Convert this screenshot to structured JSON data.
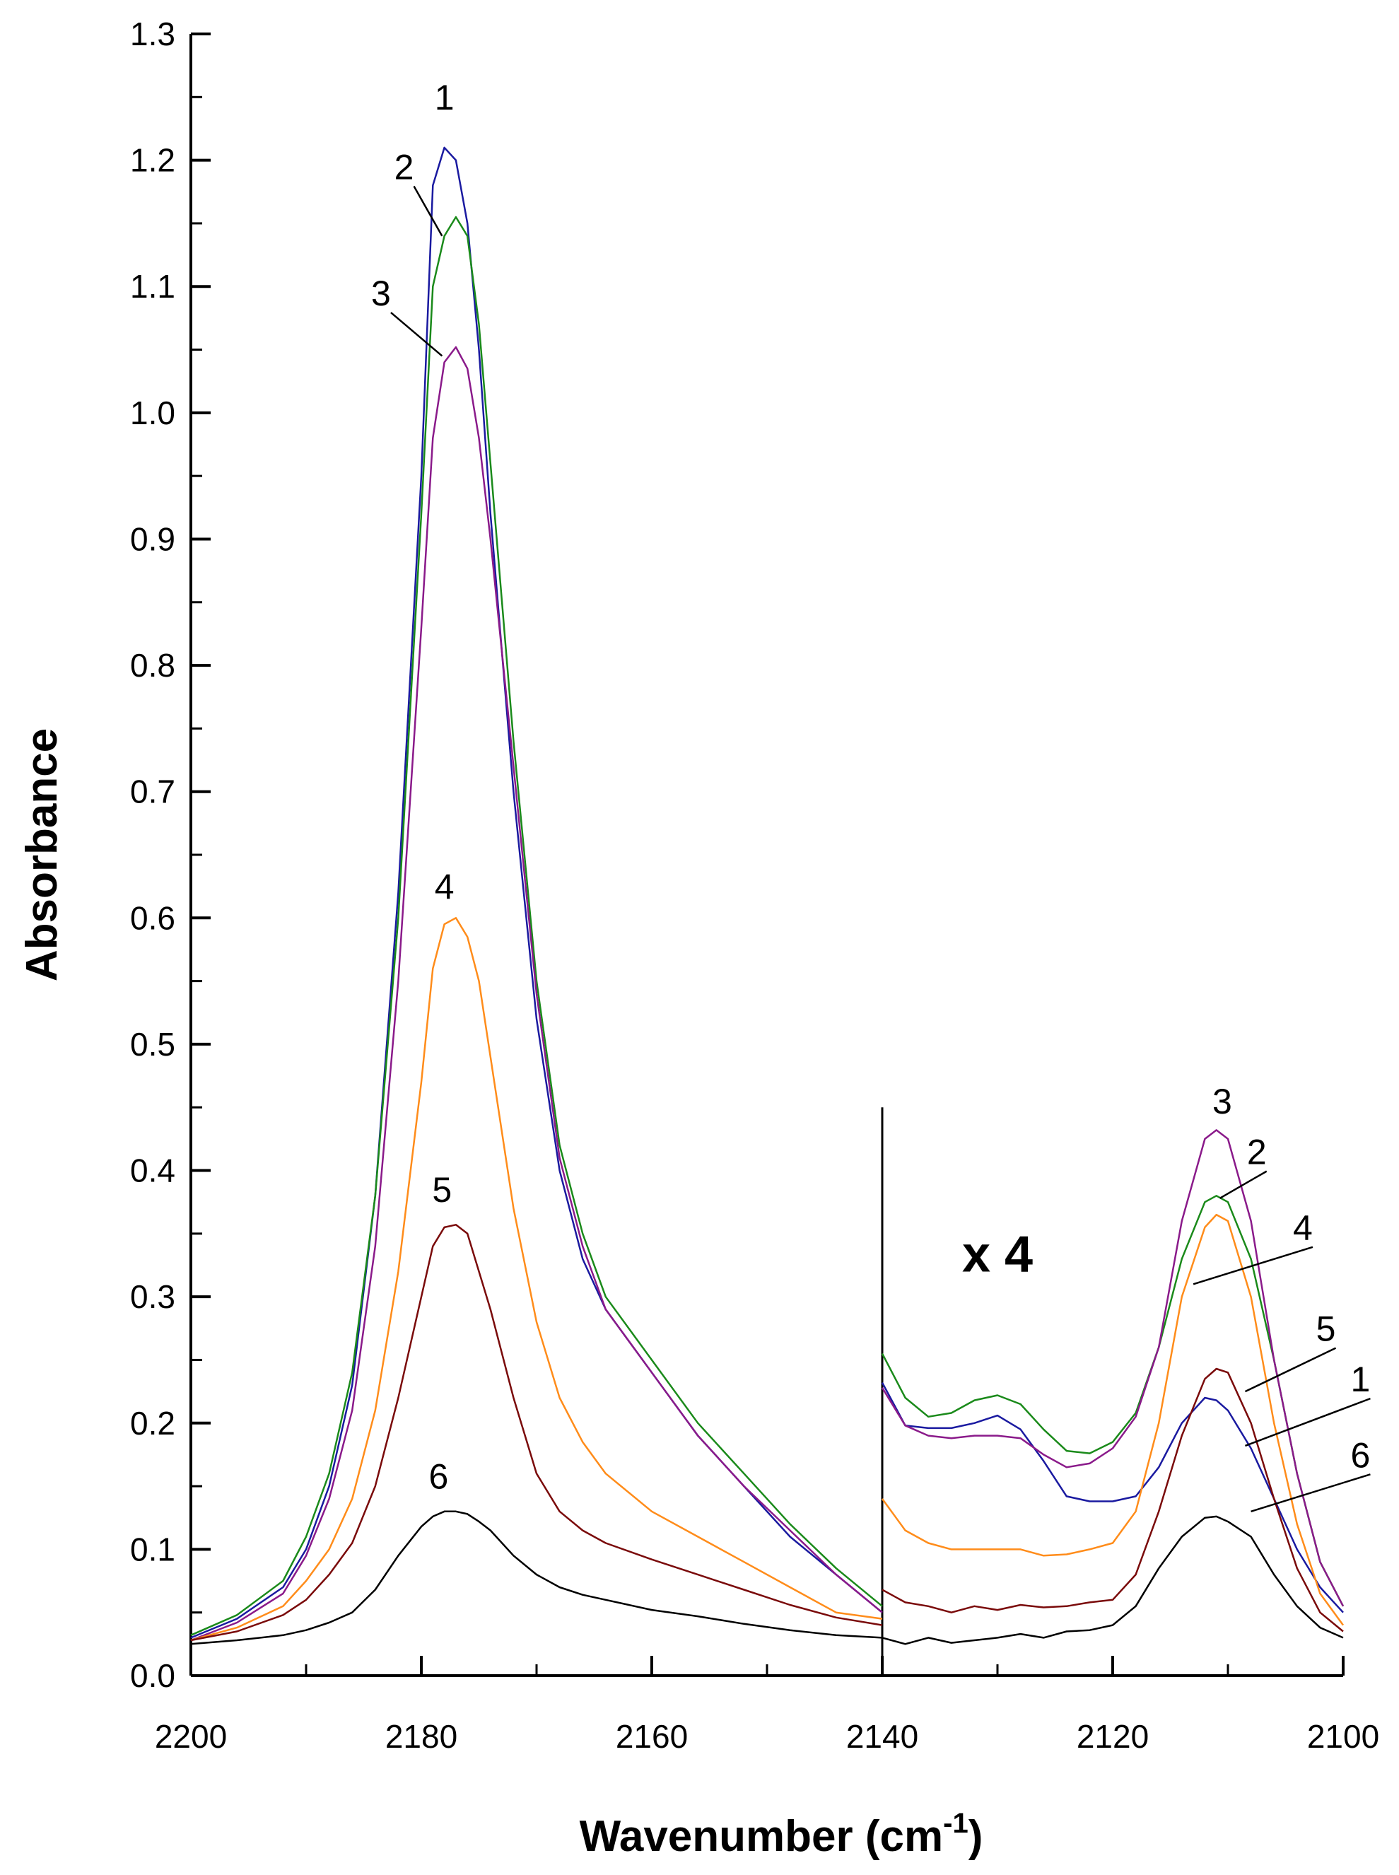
{
  "chart_data": {
    "type": "line",
    "title": "",
    "xlabel": "Wavenumber (cm",
    "xlabel_superscript": "-1",
    "xlabel_close": ")",
    "ylabel": "Absorbance",
    "xlim": [
      2200,
      2100
    ],
    "ylim": [
      0.0,
      1.3
    ],
    "x_direction": "reversed",
    "xticks": [
      "2200",
      "2180",
      "2160",
      "2140",
      "2120",
      "2100"
    ],
    "yticks": [
      "0.0",
      "0.1",
      "0.2",
      "0.3",
      "0.4",
      "0.5",
      "0.6",
      "0.7",
      "0.8",
      "0.9",
      "1.0",
      "1.1",
      "1.2",
      "1.3"
    ],
    "grid": false,
    "break_at": 2140,
    "magnified_region_factor": 4,
    "annotation": "x 4",
    "colors": {
      "1": "#1a1aa0",
      "2": "#1a8a1a",
      "3": "#8a1a8a",
      "4": "#ff8c1a",
      "5": "#7a0a0a",
      "6": "#000000"
    },
    "series": [
      {
        "name": "1",
        "color": "#1a1aa0",
        "x": [
          2200,
          2196,
          2192,
          2190,
          2188,
          2186,
          2184,
          2182,
          2180,
          2179,
          2178,
          2177,
          2176,
          2175,
          2174,
          2172,
          2170,
          2168,
          2166,
          2164,
          2160,
          2156,
          2152,
          2148,
          2144,
          2140
        ],
        "y": [
          0.03,
          0.045,
          0.07,
          0.1,
          0.15,
          0.23,
          0.38,
          0.62,
          0.95,
          1.18,
          1.21,
          1.2,
          1.15,
          1.05,
          0.92,
          0.7,
          0.52,
          0.4,
          0.33,
          0.29,
          0.24,
          0.19,
          0.15,
          0.11,
          0.08,
          0.05
        ],
        "magnified": {
          "x": [
            2140,
            2138,
            2136,
            2134,
            2132,
            2130,
            2128,
            2126,
            2124,
            2122,
            2120,
            2118,
            2116,
            2114,
            2112,
            2111,
            2110,
            2108,
            2106,
            2104,
            2102,
            2100
          ],
          "y": [
            0.232,
            0.198,
            0.196,
            0.196,
            0.2,
            0.206,
            0.195,
            0.17,
            0.142,
            0.138,
            0.138,
            0.142,
            0.165,
            0.2,
            0.22,
            0.218,
            0.21,
            0.18,
            0.14,
            0.1,
            0.07,
            0.05
          ]
        }
      },
      {
        "name": "2",
        "color": "#1a8a1a",
        "x": [
          2200,
          2196,
          2192,
          2190,
          2188,
          2186,
          2184,
          2182,
          2180,
          2179,
          2178,
          2177,
          2176,
          2175,
          2174,
          2172,
          2170,
          2168,
          2166,
          2164,
          2160,
          2156,
          2152,
          2148,
          2144,
          2140
        ],
        "y": [
          0.032,
          0.048,
          0.075,
          0.11,
          0.16,
          0.24,
          0.38,
          0.6,
          0.92,
          1.1,
          1.14,
          1.155,
          1.14,
          1.07,
          0.96,
          0.74,
          0.55,
          0.42,
          0.35,
          0.3,
          0.25,
          0.2,
          0.16,
          0.12,
          0.085,
          0.055
        ],
        "magnified": {
          "x": [
            2140,
            2138,
            2136,
            2134,
            2132,
            2130,
            2128,
            2126,
            2124,
            2122,
            2120,
            2118,
            2116,
            2114,
            2112,
            2111,
            2110,
            2108,
            2106,
            2104,
            2102,
            2100
          ],
          "y": [
            0.255,
            0.22,
            0.205,
            0.208,
            0.218,
            0.222,
            0.215,
            0.195,
            0.178,
            0.176,
            0.185,
            0.208,
            0.26,
            0.33,
            0.375,
            0.38,
            0.375,
            0.33,
            0.25,
            0.16,
            0.09,
            0.055
          ]
        }
      },
      {
        "name": "3",
        "color": "#8a1a8a",
        "x": [
          2200,
          2196,
          2192,
          2190,
          2188,
          2186,
          2184,
          2182,
          2180,
          2179,
          2178,
          2177,
          2176,
          2175,
          2174,
          2172,
          2170,
          2168,
          2166,
          2164,
          2160,
          2156,
          2152,
          2148,
          2144,
          2140
        ],
        "y": [
          0.028,
          0.042,
          0.065,
          0.095,
          0.14,
          0.21,
          0.34,
          0.55,
          0.83,
          0.98,
          1.04,
          1.052,
          1.035,
          0.98,
          0.9,
          0.72,
          0.54,
          0.41,
          0.34,
          0.29,
          0.24,
          0.19,
          0.15,
          0.115,
          0.08,
          0.05
        ],
        "magnified": {
          "x": [
            2140,
            2138,
            2136,
            2134,
            2132,
            2130,
            2128,
            2126,
            2124,
            2122,
            2120,
            2118,
            2116,
            2114,
            2112,
            2111,
            2110,
            2108,
            2106,
            2104,
            2102,
            2100
          ],
          "y": [
            0.228,
            0.198,
            0.19,
            0.188,
            0.19,
            0.19,
            0.188,
            0.175,
            0.165,
            0.168,
            0.18,
            0.205,
            0.26,
            0.36,
            0.425,
            0.432,
            0.425,
            0.36,
            0.25,
            0.16,
            0.09,
            0.055
          ]
        }
      },
      {
        "name": "4",
        "color": "#ff8c1a",
        "x": [
          2200,
          2196,
          2192,
          2190,
          2188,
          2186,
          2184,
          2182,
          2180,
          2179,
          2178,
          2177,
          2176,
          2175,
          2174,
          2172,
          2170,
          2168,
          2166,
          2164,
          2160,
          2156,
          2152,
          2148,
          2144,
          2140
        ],
        "y": [
          0.028,
          0.038,
          0.055,
          0.075,
          0.1,
          0.14,
          0.21,
          0.32,
          0.47,
          0.56,
          0.595,
          0.6,
          0.585,
          0.55,
          0.49,
          0.37,
          0.28,
          0.22,
          0.185,
          0.16,
          0.13,
          0.11,
          0.09,
          0.07,
          0.05,
          0.045
        ],
        "magnified": {
          "x": [
            2140,
            2138,
            2136,
            2134,
            2132,
            2130,
            2128,
            2126,
            2124,
            2122,
            2120,
            2118,
            2116,
            2114,
            2112,
            2111,
            2110,
            2108,
            2106,
            2104,
            2102,
            2100
          ],
          "y": [
            0.14,
            0.115,
            0.105,
            0.1,
            0.1,
            0.1,
            0.1,
            0.095,
            0.096,
            0.1,
            0.105,
            0.13,
            0.2,
            0.3,
            0.355,
            0.365,
            0.36,
            0.3,
            0.2,
            0.12,
            0.065,
            0.04
          ]
        }
      },
      {
        "name": "5",
        "color": "#7a0a0a",
        "x": [
          2200,
          2196,
          2192,
          2190,
          2188,
          2186,
          2184,
          2182,
          2180,
          2179,
          2178,
          2177,
          2176,
          2175,
          2174,
          2172,
          2170,
          2168,
          2166,
          2164,
          2160,
          2156,
          2152,
          2148,
          2144,
          2140
        ],
        "y": [
          0.028,
          0.035,
          0.048,
          0.06,
          0.08,
          0.105,
          0.15,
          0.22,
          0.3,
          0.34,
          0.355,
          0.357,
          0.35,
          0.32,
          0.29,
          0.22,
          0.16,
          0.13,
          0.115,
          0.105,
          0.092,
          0.08,
          0.068,
          0.056,
          0.046,
          0.04
        ],
        "magnified": {
          "x": [
            2140,
            2138,
            2136,
            2134,
            2132,
            2130,
            2128,
            2126,
            2124,
            2122,
            2120,
            2118,
            2116,
            2114,
            2112,
            2111,
            2110,
            2108,
            2106,
            2104,
            2102,
            2100
          ],
          "y": [
            0.068,
            0.058,
            0.055,
            0.05,
            0.055,
            0.052,
            0.056,
            0.054,
            0.055,
            0.058,
            0.06,
            0.08,
            0.13,
            0.19,
            0.235,
            0.243,
            0.24,
            0.2,
            0.14,
            0.085,
            0.05,
            0.035
          ]
        }
      },
      {
        "name": "6",
        "color": "#000000",
        "x": [
          2200,
          2196,
          2192,
          2190,
          2188,
          2186,
          2184,
          2182,
          2180,
          2179,
          2178,
          2177,
          2176,
          2175,
          2174,
          2172,
          2170,
          2168,
          2166,
          2164,
          2160,
          2156,
          2152,
          2148,
          2144,
          2140
        ],
        "y": [
          0.025,
          0.028,
          0.032,
          0.036,
          0.042,
          0.05,
          0.068,
          0.095,
          0.118,
          0.126,
          0.13,
          0.13,
          0.128,
          0.122,
          0.115,
          0.095,
          0.08,
          0.07,
          0.064,
          0.06,
          0.052,
          0.047,
          0.041,
          0.036,
          0.032,
          0.03
        ],
        "magnified": {
          "x": [
            2140,
            2138,
            2136,
            2134,
            2132,
            2130,
            2128,
            2126,
            2124,
            2122,
            2120,
            2118,
            2116,
            2114,
            2112,
            2111,
            2110,
            2108,
            2106,
            2104,
            2102,
            2100
          ],
          "y": [
            0.03,
            0.025,
            0.03,
            0.026,
            0.028,
            0.03,
            0.033,
            0.03,
            0.035,
            0.036,
            0.04,
            0.055,
            0.085,
            0.11,
            0.125,
            0.126,
            0.122,
            0.11,
            0.08,
            0.055,
            0.038,
            0.03
          ]
        }
      }
    ],
    "curve_labels": [
      {
        "text": "1",
        "x": 2178,
        "y": 1.24,
        "target_x": 2178,
        "target_y": 1.21,
        "leader": false
      },
      {
        "text": "2",
        "x": 2181.5,
        "y": 1.185,
        "target_x": 2178.2,
        "target_y": 1.14,
        "leader": true
      },
      {
        "text": "3",
        "x": 2183.5,
        "y": 1.085,
        "target_x": 2178.2,
        "target_y": 1.045,
        "leader": true
      },
      {
        "text": "4",
        "x": 2178,
        "y": 0.615,
        "target_x": 2178,
        "target_y": 0.6,
        "leader": false
      },
      {
        "text": "5",
        "x": 2178.2,
        "y": 0.375,
        "target_x": 2178,
        "target_y": 0.357,
        "leader": false
      },
      {
        "text": "6",
        "x": 2178.5,
        "y": 0.148,
        "target_x": 2178,
        "target_y": 0.13,
        "leader": false
      },
      {
        "text": "3",
        "x": 2110.5,
        "y": 0.445,
        "target_x": 2110.5,
        "target_y": 0.432,
        "leader": false
      },
      {
        "text": "2",
        "x": 2107.5,
        "y": 0.405,
        "target_x": 2110.7,
        "target_y": 0.378,
        "leader": true
      },
      {
        "text": "4",
        "x": 2103.5,
        "y": 0.345,
        "target_x": 2113,
        "target_y": 0.31,
        "leader": true
      },
      {
        "text": "5",
        "x": 2101.5,
        "y": 0.265,
        "target_x": 2108.5,
        "target_y": 0.225,
        "leader": true
      },
      {
        "text": "1",
        "x": 2098.5,
        "y": 0.225,
        "target_x": 2108.5,
        "target_y": 0.182,
        "leader": true
      },
      {
        "text": "6",
        "x": 2098.5,
        "y": 0.165,
        "target_x": 2108,
        "target_y": 0.13,
        "leader": true
      }
    ]
  }
}
